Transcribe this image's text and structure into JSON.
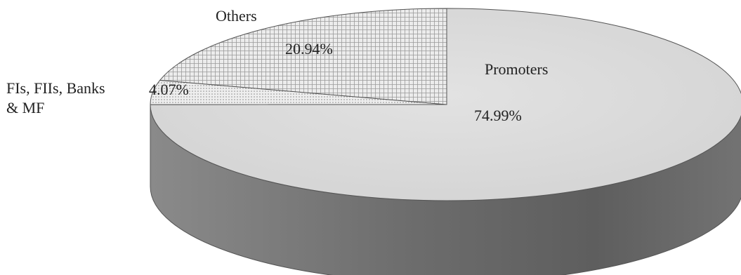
{
  "chart_data": {
    "type": "pie",
    "style": "3d",
    "slices": [
      {
        "label": "Promoters",
        "value": 74.99,
        "value_label": "74.99%",
        "color": "#d9d9d9",
        "pattern": "none"
      },
      {
        "label": "FIs, FIIs, Banks & MF",
        "label_lines": [
          "FIs, FIIs, Banks",
          "& MF"
        ],
        "value": 4.07,
        "value_label": "4.07%",
        "color": "#e4e4e4",
        "pattern": "dots"
      },
      {
        "label": "Others",
        "value": 20.94,
        "value_label": "20.94%",
        "color": "#e6e6e6",
        "pattern": "grid"
      }
    ],
    "side_color": "#6e6e6e",
    "outline_color": "#555555"
  }
}
